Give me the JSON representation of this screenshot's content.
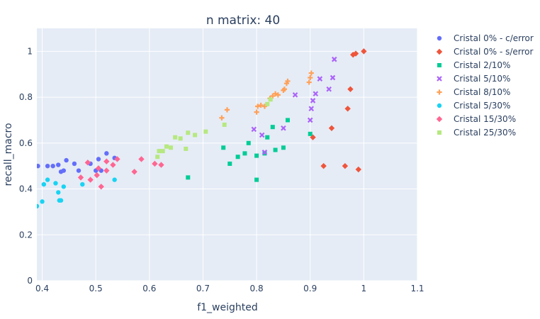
{
  "chart_data": {
    "type": "scatter",
    "title": "n matrix: 40",
    "xlabel": "f1_weighted",
    "ylabel": "recall_macro",
    "xlim": [
      0.39,
      1.1
    ],
    "ylim": [
      0,
      1.1
    ],
    "xticks": [
      0.4,
      0.5,
      0.6,
      0.7,
      0.8,
      0.9,
      1,
      1.1
    ],
    "xtick_labels": [
      "0.4",
      "0.5",
      "0.6",
      "0.7",
      "0.8",
      "0.9",
      "1",
      "1.1"
    ],
    "yticks": [
      0,
      0.2,
      0.4,
      0.6,
      0.8,
      1
    ],
    "ytick_labels": [
      "0",
      "0.2",
      "0.4",
      "0.6",
      "0.8",
      "1"
    ],
    "grid": true,
    "legend_position": "right",
    "background_color": "#E5ECF6",
    "series": [
      {
        "name": "Cristal 0% - c/error",
        "color": "#636EFA",
        "marker": "circle",
        "x": [
          0.392,
          0.41,
          0.42,
          0.43,
          0.435,
          0.44,
          0.445,
          0.46,
          0.468,
          0.49,
          0.5,
          0.505,
          0.51,
          0.52,
          0.535
        ],
        "y": [
          0.5,
          0.5,
          0.5,
          0.505,
          0.475,
          0.48,
          0.525,
          0.51,
          0.48,
          0.51,
          0.48,
          0.53,
          0.48,
          0.555,
          0.535
        ]
      },
      {
        "name": "Cristal 0% - s/error",
        "color": "#EF553B",
        "marker": "diamond",
        "x": [
          0.905,
          0.925,
          0.94,
          0.965,
          0.97,
          0.975,
          0.98,
          0.985,
          0.99,
          1.0
        ],
        "y": [
          0.625,
          0.5,
          0.665,
          0.5,
          0.75,
          0.835,
          0.985,
          0.99,
          0.485,
          1.0
        ]
      },
      {
        "name": "Cristal 2/10%",
        "color": "#00CC96",
        "marker": "square",
        "x": [
          0.672,
          0.738,
          0.75,
          0.765,
          0.778,
          0.785,
          0.8,
          0.8,
          0.815,
          0.82,
          0.83,
          0.835,
          0.85,
          0.858,
          0.9
        ],
        "y": [
          0.45,
          0.58,
          0.51,
          0.54,
          0.555,
          0.6,
          0.44,
          0.545,
          0.555,
          0.625,
          0.67,
          0.57,
          0.58,
          0.7,
          0.64
        ]
      },
      {
        "name": "Cristal 5/10%",
        "color": "#AB63FA",
        "marker": "x",
        "x": [
          0.795,
          0.81,
          0.815,
          0.85,
          0.872,
          0.9,
          0.902,
          0.905,
          0.91,
          0.918,
          0.935,
          0.942,
          0.945
        ],
        "y": [
          0.66,
          0.635,
          0.56,
          0.665,
          0.81,
          0.7,
          0.75,
          0.785,
          0.815,
          0.88,
          0.835,
          0.885,
          0.965
        ]
      },
      {
        "name": "Cristal 8/10%",
        "color": "#FFA15A",
        "marker": "cross",
        "x": [
          0.735,
          0.745,
          0.8,
          0.802,
          0.808,
          0.815,
          0.825,
          0.83,
          0.835,
          0.84,
          0.85,
          0.852,
          0.856,
          0.858,
          0.898,
          0.9,
          0.902
        ],
        "y": [
          0.71,
          0.745,
          0.735,
          0.76,
          0.765,
          0.76,
          0.795,
          0.805,
          0.815,
          0.81,
          0.83,
          0.835,
          0.86,
          0.87,
          0.865,
          0.885,
          0.905
        ]
      },
      {
        "name": "Cristal 5/30%",
        "color": "#19D3F3",
        "marker": "circle",
        "x": [
          0.39,
          0.4,
          0.403,
          0.41,
          0.425,
          0.43,
          0.432,
          0.435,
          0.44,
          0.475,
          0.535
        ],
        "y": [
          0.325,
          0.345,
          0.42,
          0.44,
          0.425,
          0.385,
          0.35,
          0.35,
          0.41,
          0.42,
          0.44
        ]
      },
      {
        "name": "Cristal 15/30%",
        "color": "#FF6692",
        "marker": "diamond",
        "x": [
          0.472,
          0.485,
          0.49,
          0.502,
          0.505,
          0.51,
          0.52,
          0.52,
          0.532,
          0.54,
          0.572,
          0.585,
          0.61,
          0.622
        ],
        "y": [
          0.45,
          0.515,
          0.44,
          0.46,
          0.49,
          0.41,
          0.48,
          0.52,
          0.505,
          0.53,
          0.475,
          0.53,
          0.51,
          0.505
        ]
      },
      {
        "name": "Cristal 25/30%",
        "color": "#B6E880",
        "marker": "square",
        "x": [
          0.615,
          0.618,
          0.625,
          0.632,
          0.64,
          0.648,
          0.658,
          0.668,
          0.672,
          0.685,
          0.705,
          0.74,
          0.82,
          0.826
        ],
        "y": [
          0.54,
          0.565,
          0.565,
          0.585,
          0.58,
          0.625,
          0.62,
          0.575,
          0.645,
          0.635,
          0.65,
          0.68,
          0.77,
          0.79
        ]
      }
    ]
  }
}
